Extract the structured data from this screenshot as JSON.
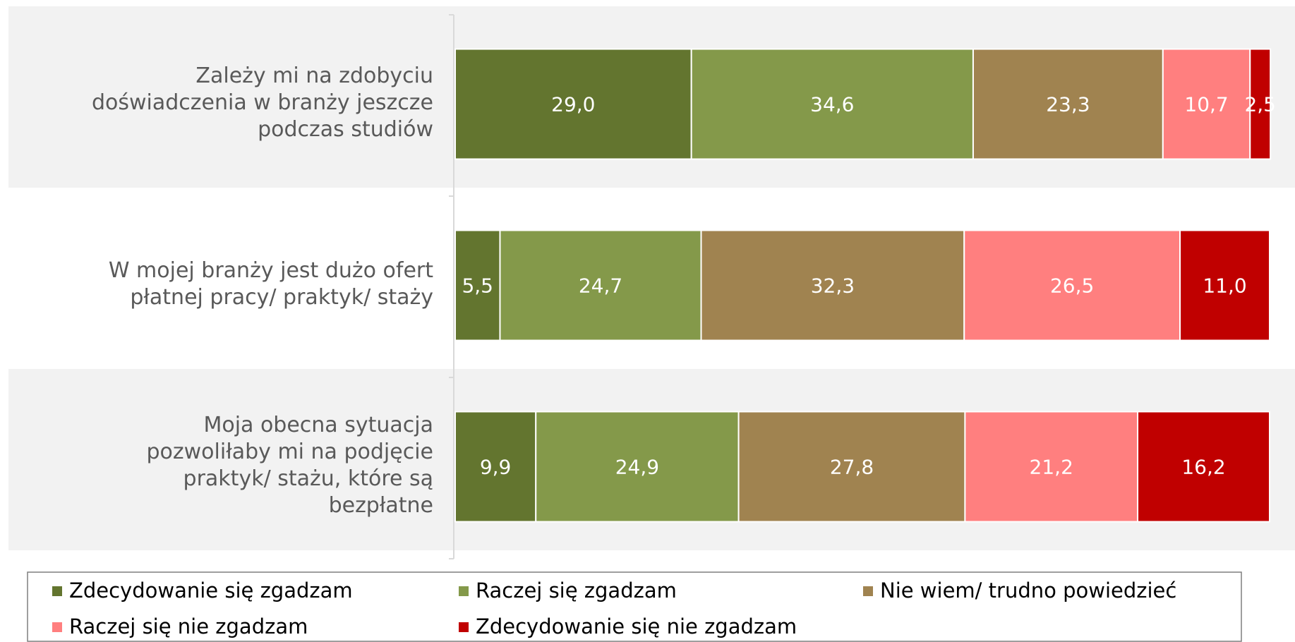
{
  "chart_data": {
    "type": "stacked-bar-horizontal",
    "categories": [
      "Zależy mi na zdobyciu doświadczenia w branży jeszcze podczas studiów",
      "W mojej branży jest dużo ofert płatnej pracy/ praktyk/ staży",
      "Moja obecna sytuacja pozwoliłaby mi na podjęcie praktyk/ stażu, które są bezpłatne"
    ],
    "xlim": [
      0,
      100
    ],
    "series": [
      {
        "name": "Zdecydowanie się zgadzam",
        "color": "#63752f",
        "values": [
          29.0,
          5.5,
          9.9
        ],
        "value_labels": [
          "29,0",
          "5,5",
          "9,9"
        ]
      },
      {
        "name": "Raczej się zgadzam",
        "color": "#84994a",
        "values": [
          34.6,
          24.7,
          24.9
        ],
        "value_labels": [
          "34,6",
          "24,7",
          "24,9"
        ]
      },
      {
        "name": "Nie wiem/ trudno powiedzieć",
        "color": "#a08350",
        "values": [
          23.3,
          32.3,
          27.8
        ],
        "value_labels": [
          "23,3",
          "32,3",
          "27,8"
        ]
      },
      {
        "name": "Raczej się nie zgadzam",
        "color": "#ff7f7f",
        "values": [
          10.7,
          26.5,
          21.2
        ],
        "value_labels": [
          "10,7",
          "26,5",
          "21,2"
        ]
      },
      {
        "name": "Zdecydowanie się nie zgadzam",
        "color": "#c00000",
        "values": [
          2.5,
          11.0,
          16.2
        ],
        "value_labels": [
          "2,5",
          "11,0",
          "16,2"
        ]
      }
    ]
  }
}
